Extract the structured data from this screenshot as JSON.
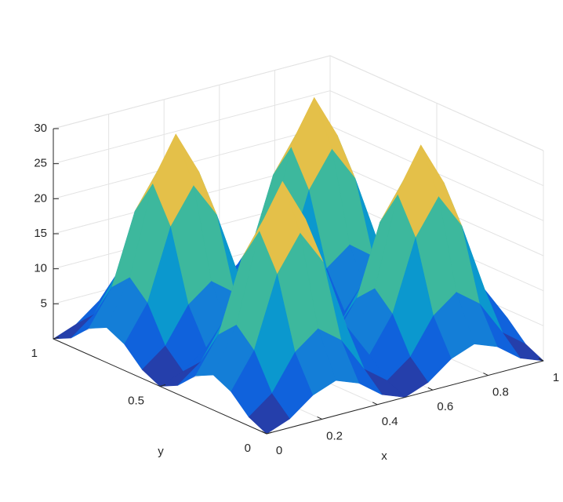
{
  "chart_data": {
    "type": "surface",
    "colormap": "parula",
    "xlabel": "x",
    "ylabel": "y",
    "x": [
      0,
      0.0833,
      0.1667,
      0.25,
      0.3333,
      0.4167,
      0.5,
      0.5833,
      0.6667,
      0.75,
      0.8333,
      0.9167,
      1
    ],
    "y": [
      0,
      0.0833,
      0.1667,
      0.25,
      0.3333,
      0.4167,
      0.5,
      0.5833,
      0.6667,
      0.75,
      0.8333,
      0.9167,
      1
    ],
    "z": [
      [
        0,
        1.25,
        3.75,
        5,
        3.75,
        1.25,
        0,
        1.25,
        3.75,
        5,
        3.75,
        1.25,
        0
      ],
      [
        1.25,
        3.75,
        8.75,
        11.25,
        8.75,
        3.75,
        1.25,
        3.75,
        8.75,
        11.25,
        8.75,
        3.75,
        1.25
      ],
      [
        3.75,
        8.75,
        18.75,
        23.75,
        18.75,
        8.75,
        3.75,
        8.75,
        18.75,
        23.75,
        18.75,
        8.75,
        3.75
      ],
      [
        5,
        11.25,
        23.75,
        30,
        23.75,
        11.25,
        5,
        11.25,
        23.75,
        30,
        23.75,
        11.25,
        5
      ],
      [
        3.75,
        8.75,
        18.75,
        23.75,
        18.75,
        8.75,
        3.75,
        8.75,
        18.75,
        23.75,
        18.75,
        8.75,
        3.75
      ],
      [
        1.25,
        3.75,
        8.75,
        11.25,
        8.75,
        3.75,
        1.25,
        3.75,
        8.75,
        11.25,
        8.75,
        3.75,
        1.25
      ],
      [
        0,
        1.25,
        3.75,
        5,
        3.75,
        1.25,
        0,
        1.25,
        3.75,
        5,
        3.75,
        1.25,
        0
      ],
      [
        1.25,
        3.75,
        8.75,
        11.25,
        8.75,
        3.75,
        1.25,
        3.75,
        8.75,
        11.25,
        8.75,
        3.75,
        1.25
      ],
      [
        3.75,
        8.75,
        18.75,
        23.75,
        18.75,
        8.75,
        3.75,
        8.75,
        18.75,
        23.75,
        18.75,
        8.75,
        3.75
      ],
      [
        5,
        11.25,
        23.75,
        30,
        23.75,
        11.25,
        5,
        11.25,
        23.75,
        30,
        23.75,
        11.25,
        5
      ],
      [
        3.75,
        8.75,
        18.75,
        23.75,
        18.75,
        8.75,
        3.75,
        8.75,
        18.75,
        23.75,
        18.75,
        8.75,
        3.75
      ],
      [
        1.25,
        3.75,
        8.75,
        11.25,
        8.75,
        3.75,
        1.25,
        3.75,
        8.75,
        11.25,
        8.75,
        3.75,
        1.25
      ],
      [
        0,
        1.25,
        3.75,
        5,
        3.75,
        1.25,
        0,
        1.25,
        3.75,
        5,
        3.75,
        1.25,
        0
      ]
    ],
    "xlim": [
      0,
      1
    ],
    "ylim": [
      0,
      1
    ],
    "zlim": [
      0,
      30
    ],
    "xticks": [
      0,
      0.2,
      0.4,
      0.6,
      0.8,
      1
    ],
    "yticks": [
      0,
      0.5,
      1
    ],
    "zticks": [
      5,
      10,
      15,
      20,
      25,
      30
    ],
    "grid": true
  }
}
